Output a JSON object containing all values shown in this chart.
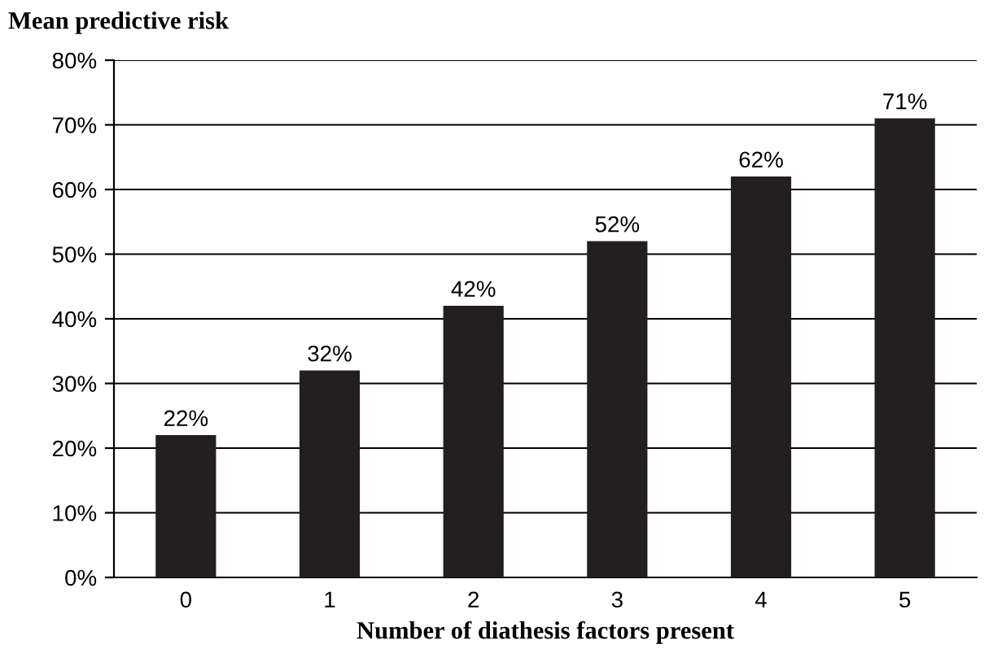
{
  "chart_data": {
    "type": "bar",
    "ylabel": "Mean predictive risk",
    "xlabel": "Number of diathesis factors present",
    "categories": [
      "0",
      "1",
      "2",
      "3",
      "4",
      "5"
    ],
    "values": [
      22,
      32,
      42,
      52,
      62,
      71
    ],
    "value_labels": [
      "22%",
      "32%",
      "42%",
      "52%",
      "62%",
      "71%"
    ],
    "color": "#231f20",
    "ylim": [
      0,
      80
    ],
    "yticks": [
      {
        "value": 0,
        "label": "0%"
      },
      {
        "value": 10,
        "label": "10%"
      },
      {
        "value": 20,
        "label": "20%"
      },
      {
        "value": 30,
        "label": "30%"
      },
      {
        "value": 40,
        "label": "40%"
      },
      {
        "value": 50,
        "label": "50%"
      },
      {
        "value": 60,
        "label": "60%"
      },
      {
        "value": 70,
        "label": "70%"
      },
      {
        "value": 80,
        "label": "80%"
      }
    ],
    "grid": "y"
  }
}
